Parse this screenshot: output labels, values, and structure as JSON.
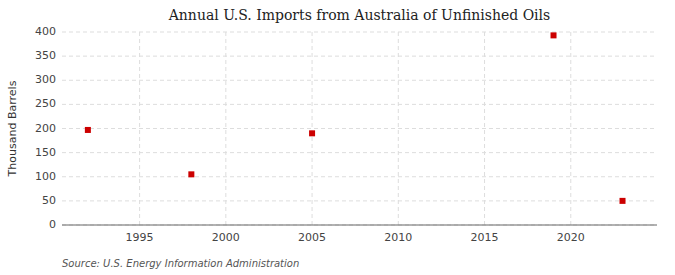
{
  "chart_data": {
    "type": "scatter",
    "title": "Annual U.S. Imports from Australia of Unfinished Oils",
    "ylabel": "Thousand Barrels",
    "annotations": [
      "Source: U.S. Energy Information Administration"
    ],
    "x": [
      1992,
      1998,
      2005,
      2019,
      2023
    ],
    "values": [
      197,
      105,
      190,
      393,
      50
    ],
    "color": "#cc0000",
    "marker": "square",
    "xlim": [
      1990.5,
      2025
    ],
    "ylim": [
      0,
      400
    ],
    "xticks": [
      1995,
      2000,
      2005,
      2010,
      2015,
      2020
    ],
    "yticks": [
      0,
      50,
      100,
      150,
      200,
      250,
      300,
      350,
      400
    ],
    "grid": true
  }
}
